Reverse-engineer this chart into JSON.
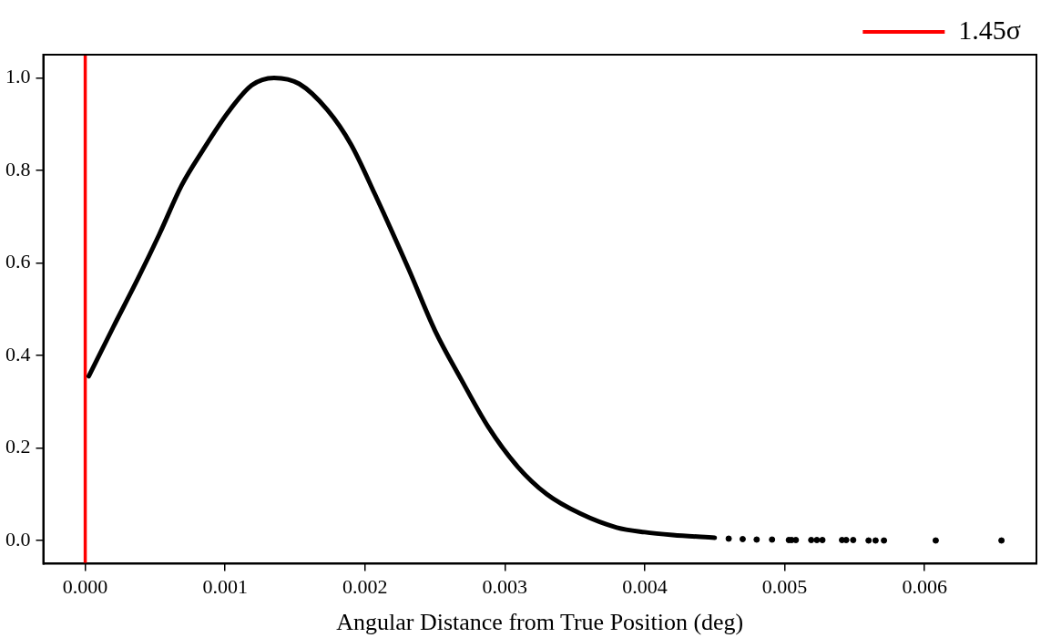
{
  "chart_data": {
    "type": "scatter",
    "xlabel": "Angular Distance from True Position (deg)",
    "xlim": [
      -0.0003,
      0.0068
    ],
    "ylim": [
      -0.05,
      1.05
    ],
    "xticks": [
      {
        "value": 0,
        "label": "0.000"
      },
      {
        "value": 0.001,
        "label": "0.001"
      },
      {
        "value": 0.002,
        "label": "0.002"
      },
      {
        "value": 0.003,
        "label": "0.003"
      },
      {
        "value": 0.004,
        "label": "0.004"
      },
      {
        "value": 0.005,
        "label": "0.005"
      },
      {
        "value": 0.006,
        "label": "0.006"
      }
    ],
    "yticks": [
      {
        "value": 0,
        "label": "0.0"
      },
      {
        "value": 0.2,
        "label": "0.2"
      },
      {
        "value": 0.4,
        "label": "0.4"
      },
      {
        "value": 0.6,
        "label": "0.6"
      },
      {
        "value": 0.8,
        "label": "0.8"
      },
      {
        "value": 1,
        "label": "1.0"
      }
    ],
    "grid": false,
    "legend": "top right",
    "marker": "circle",
    "series": [
      {
        "type": "line",
        "color": "#000000",
        "marker": "none",
        "x": [
          2.5e-05,
          0.0002,
          0.00038,
          0.00053,
          0.00069,
          0.00084,
          0.00102,
          0.00119,
          0.00135,
          0.00153,
          0.00173,
          0.0019,
          0.00207,
          0.00231,
          0.0025,
          0.00269,
          0.00288,
          0.00309,
          0.0033,
          0.00354,
          0.0038,
          0.004,
          0.0042,
          0.0045
        ],
        "values": [
          0.355,
          0.461,
          0.568,
          0.662,
          0.768,
          0.843,
          0.925,
          0.984,
          1.0,
          0.987,
          0.931,
          0.856,
          0.749,
          0.588,
          0.454,
          0.347,
          0.246,
          0.16,
          0.1,
          0.058,
          0.028,
          0.018,
          0.012,
          0.006
        ]
      },
      {
        "type": "scatter",
        "color": "#000000",
        "x": [
          0.0046,
          0.0047,
          0.0048,
          0.00491,
          0.00503,
          0.00505,
          0.00508,
          0.00519,
          0.00523,
          0.00527,
          0.00541,
          0.00544,
          0.00549,
          0.0056,
          0.00565,
          0.00571,
          0.00608,
          0.00655
        ],
        "values": [
          0.004,
          0.003,
          0.002,
          0.002,
          0.001,
          0.001,
          0.001,
          0.001,
          0.001,
          0.001,
          0.001,
          0.001,
          0.001,
          0,
          0,
          0,
          0,
          0
        ]
      }
    ],
    "ref_lines": [
      {
        "axis": "x",
        "value": 0,
        "label": "1.45σ",
        "color": "#ff0000"
      }
    ]
  }
}
